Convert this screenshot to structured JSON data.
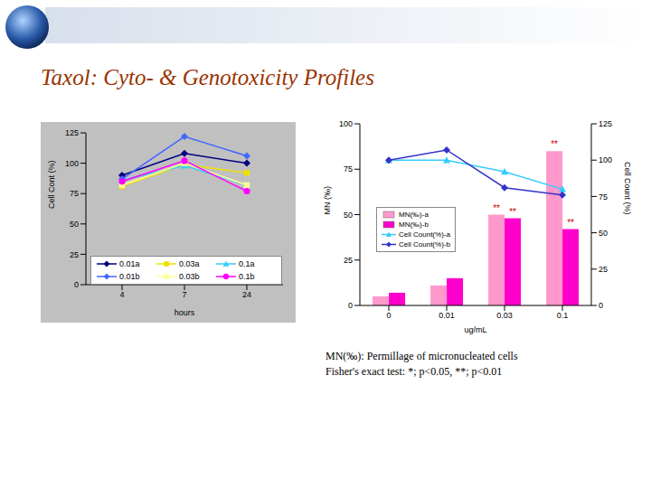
{
  "title": "Taxol: Cyto- & Genotoxicity Profiles",
  "chart_data": [
    {
      "type": "line",
      "categories": [
        "4",
        "7",
        "24"
      ],
      "x_label": "hours",
      "y_label": "Cell Cont (%)",
      "ylim": [
        0,
        125
      ],
      "yticks": [
        0,
        25,
        50,
        75,
        100,
        125
      ],
      "grid": false,
      "legend": "lower center",
      "series": [
        {
          "name": "0.01a",
          "color": "#000080",
          "marker": "diamond",
          "values": [
            90,
            108,
            100
          ]
        },
        {
          "name": "0.03a",
          "color": "#f0e000",
          "marker": "square",
          "values": [
            81,
            99,
            92
          ]
        },
        {
          "name": "0.1a",
          "color": "#33ccff",
          "marker": "triangle",
          "values": [
            86,
            98,
            82
          ]
        },
        {
          "name": "0.01b",
          "color": "#4466ff",
          "marker": "diamond",
          "values": [
            87,
            122,
            106
          ]
        },
        {
          "name": "0.03b",
          "color": "#ffff99",
          "marker": "square",
          "values": [
            82,
            100,
            82
          ]
        },
        {
          "name": "0.1b",
          "color": "#ff00ff",
          "marker": "circle",
          "values": [
            85,
            102,
            77
          ]
        }
      ]
    },
    {
      "type": "bar",
      "categories": [
        "0",
        "0.01",
        "0.03",
        "0.1"
      ],
      "x_label": "ug/mL",
      "y_label": "MN (‰)",
      "y2_label": "Cell Count (%)",
      "ylim": [
        0,
        100
      ],
      "yticks": [
        0,
        25,
        50,
        75,
        100
      ],
      "y2lim": [
        0,
        125
      ],
      "y2ticks": [
        0,
        25,
        50,
        75,
        100,
        125
      ],
      "grid": false,
      "legend": "upper left",
      "series": [
        {
          "name": "MN(‰)-a",
          "type": "bar",
          "color": "#ff99cc",
          "values": [
            5,
            11,
            50,
            85
          ]
        },
        {
          "name": "MN(‰)-b",
          "type": "bar",
          "color": "#ff00cc",
          "values": [
            7,
            15,
            48,
            42
          ]
        },
        {
          "name": "Cell Count(%)-a",
          "type": "line",
          "axis": "y2",
          "color": "#33ccff",
          "marker": "triangle",
          "values": [
            100,
            100,
            92,
            80
          ]
        },
        {
          "name": "Cell Count(%)-b",
          "type": "line",
          "axis": "y2",
          "color": "#3333cc",
          "marker": "diamond",
          "values": [
            100,
            107,
            81,
            76
          ]
        }
      ],
      "annotations": [
        {
          "category": "0.03",
          "series": "MN(‰)-a",
          "text": "**"
        },
        {
          "category": "0.03",
          "series": "MN(‰)-b",
          "text": "**"
        },
        {
          "category": "0.1",
          "series": "MN(‰)-a",
          "text": "**"
        },
        {
          "category": "0.1",
          "series": "MN(‰)-b",
          "text": "**"
        }
      ]
    }
  ],
  "notes": [
    "MN(‰): Permillage of micronucleated cells",
    "Fisher's exact test: *; p<0.05, **; p<0.01"
  ]
}
